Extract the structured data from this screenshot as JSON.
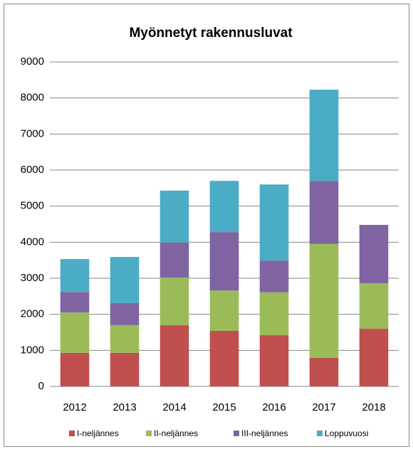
{
  "chart_data": {
    "type": "stacked_bar",
    "title": "Myönnetyt rakennusluvat",
    "categories": [
      "2012",
      "2013",
      "2014",
      "2015",
      "2016",
      "2017",
      "2018"
    ],
    "series": [
      {
        "name": "I-neljännes",
        "color": "#c0504d",
        "values": [
          930,
          930,
          1700,
          1540,
          1420,
          790,
          1600
        ]
      },
      {
        "name": "II-neljännes",
        "color": "#9bbb59",
        "values": [
          1120,
          770,
          1320,
          1120,
          1190,
          3160,
          1260
        ]
      },
      {
        "name": "III-neljännes",
        "color": "#8064a2",
        "values": [
          570,
          610,
          970,
          1620,
          880,
          1750,
          1620
        ]
      },
      {
        "name": "Loppuvuosi",
        "color": "#4bacc6",
        "values": [
          910,
          1280,
          1440,
          1420,
          2110,
          2530,
          null
        ]
      }
    ],
    "ylim": [
      0,
      9000
    ],
    "yticks": [
      0,
      1000,
      2000,
      3000,
      4000,
      5000,
      6000,
      7000,
      8000,
      9000
    ],
    "grid": true,
    "legend": "bottom"
  }
}
